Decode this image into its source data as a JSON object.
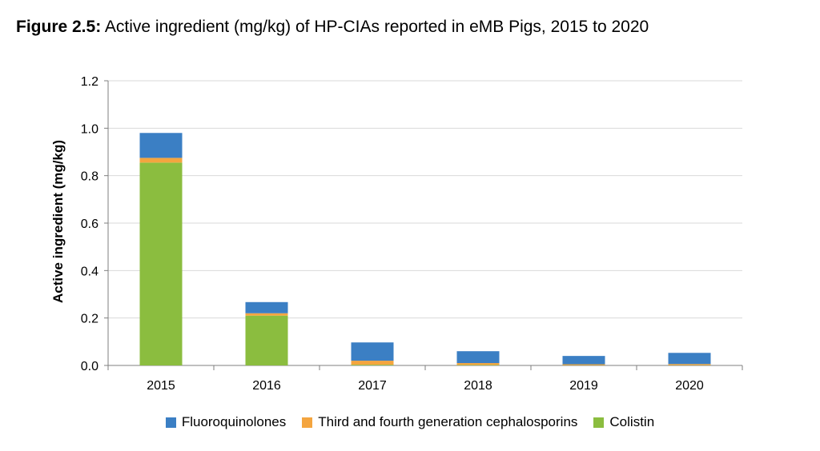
{
  "chart_data": {
    "type": "bar",
    "stacked": true,
    "title_label": "Figure 2.5:",
    "title": "Active ingredient (mg/kg) of HP-CIAs reported in eMB Pigs, 2015 to 2020",
    "xlabel": "",
    "ylabel": "Active ingredient (mg/kg)",
    "ylim": [
      0,
      1.2
    ],
    "yticks": [
      "0.0",
      "0.2",
      "0.4",
      "0.6",
      "0.8",
      "1.0",
      "1.2"
    ],
    "categories": [
      "2015",
      "2016",
      "2017",
      "2018",
      "2019",
      "2020"
    ],
    "series": [
      {
        "name": "Colistin",
        "color": "#8bbd3f",
        "values": [
          0.855,
          0.21,
          0.003,
          0.002,
          0.001,
          0.001
        ]
      },
      {
        "name": "Third and fourth generation cephalosporins",
        "color": "#f4a53f",
        "values": [
          0.02,
          0.01,
          0.017,
          0.008,
          0.004,
          0.005
        ]
      },
      {
        "name": "Fluoroquinolones",
        "color": "#3b7fc4",
        "values": [
          0.105,
          0.047,
          0.077,
          0.05,
          0.035,
          0.047
        ]
      }
    ],
    "legend": [
      "Fluoroquinolones",
      "Third and fourth generation cephalosporins",
      "Colistin"
    ],
    "legend_position": "bottom",
    "grid": true
  }
}
